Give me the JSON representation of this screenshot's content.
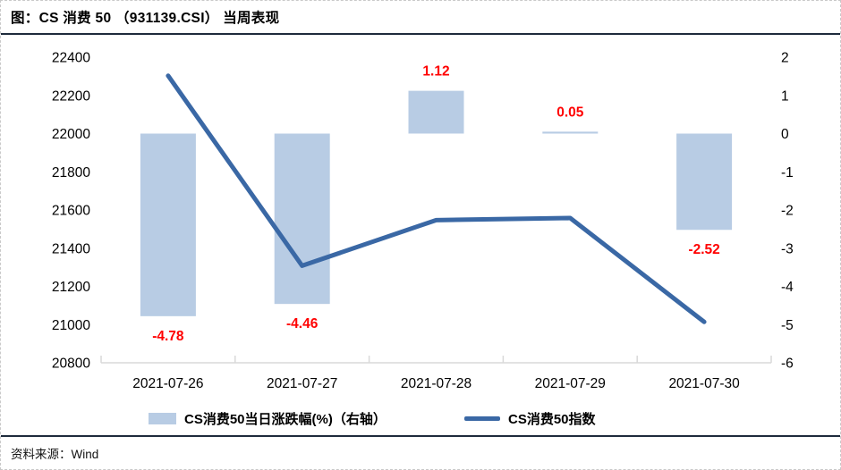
{
  "figure": {
    "title": "图：CS 消费 50 （931139.CSI） 当周表现",
    "source": "资料来源：Wind"
  },
  "chart_data": {
    "type": "combo",
    "title": "图：CS 消费 50 （931139.CSI） 当周表现",
    "categories": [
      "2021-07-26",
      "2021-07-27",
      "2021-07-28",
      "2021-07-29",
      "2021-07-30"
    ],
    "series": [
      {
        "name": "CS消费50当日涨跌幅(%)（右轴）",
        "type": "bar",
        "axis": "right",
        "values": [
          -4.78,
          -4.46,
          1.12,
          0.05,
          -2.52
        ],
        "labels": [
          "-4.78",
          "-4.46",
          "1.12",
          "0.05",
          "-2.52"
        ],
        "color": "#b8cce4",
        "label_color": "#ff0000"
      },
      {
        "name": "CS消费50指数",
        "type": "line",
        "axis": "left",
        "values": [
          22303,
          21308,
          21547,
          21558,
          21014
        ],
        "color": "#3a68a5"
      }
    ],
    "left_axis": {
      "min": 20800,
      "max": 22400,
      "step": 200,
      "ticks": [
        22400,
        22200,
        22000,
        21800,
        21600,
        21400,
        21200,
        21000,
        20800
      ]
    },
    "right_axis": {
      "min": -6,
      "max": 2,
      "step": 1,
      "ticks": [
        2,
        1,
        0,
        -1,
        -2,
        -3,
        -4,
        -5,
        -6
      ]
    },
    "axis_color": "#d9d9d9",
    "grid": false,
    "legend_position": "bottom"
  }
}
